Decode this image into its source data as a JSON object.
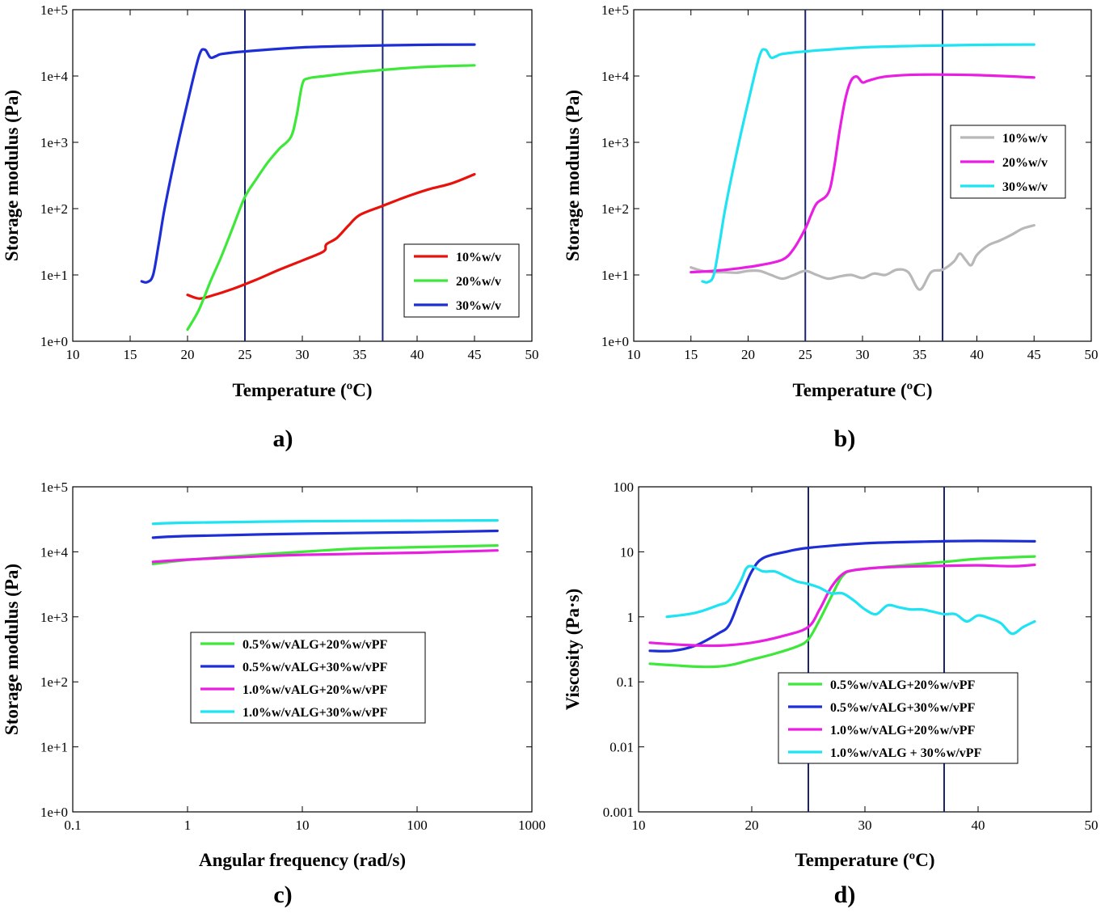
{
  "figure": {
    "panels": [
      {
        "id": "a",
        "panel_label": "a)",
        "xlabel": "Temperature (ºC)",
        "ylabel": "Storage modulus (Pa)"
      },
      {
        "id": "b",
        "panel_label": "b)",
        "xlabel": "Temperature (ºC)",
        "ylabel": "Storage modulus (Pa)"
      },
      {
        "id": "c",
        "panel_label": "c)",
        "xlabel": "Angular frequency (rad/s)",
        "ylabel": "Storage modulus (Pa)"
      },
      {
        "id": "d",
        "panel_label": "d)",
        "xlabel": "Temperature (ºC)",
        "ylabel": "Viscosity (Pa·s)"
      }
    ]
  },
  "chart_data": [
    {
      "panel": "a",
      "type": "line",
      "title": "",
      "xlabel": "Temperature (ºC)",
      "ylabel": "Storage modulus (Pa)",
      "xscale": "linear",
      "yscale": "log",
      "xlim": [
        10,
        50
      ],
      "ylim": [
        1,
        100000
      ],
      "x_ticks": [
        "10",
        "15",
        "20",
        "25",
        "30",
        "35",
        "40",
        "45",
        "50"
      ],
      "y_ticks": [
        "1e+0",
        "1e+1",
        "1e+2",
        "1e+3",
        "1e+4",
        "1e+5"
      ],
      "vertical_lines": [
        25,
        37
      ],
      "reference_line_color": "#1a2370",
      "grid": false,
      "legend_position": "lower-right",
      "series": [
        {
          "name": "10%w/v",
          "color": "#e8120c",
          "points": [
            [
              20,
              5.0
            ],
            [
              21,
              4.4
            ],
            [
              22,
              4.8
            ],
            [
              24,
              6.2
            ],
            [
              26,
              8.5
            ],
            [
              28,
              12
            ],
            [
              30,
              16.5
            ],
            [
              31.5,
              21
            ],
            [
              32,
              24
            ],
            [
              32.1,
              29
            ],
            [
              33,
              36
            ],
            [
              34,
              55
            ],
            [
              35,
              80
            ],
            [
              37,
              110
            ],
            [
              39,
              150
            ],
            [
              41,
              195
            ],
            [
              43,
              240
            ],
            [
              45,
              330
            ]
          ]
        },
        {
          "name": "20%w/v",
          "color": "#3ee83a",
          "points": [
            [
              20,
              1.5
            ],
            [
              21,
              3
            ],
            [
              22,
              8
            ],
            [
              23,
              20
            ],
            [
              24,
              55
            ],
            [
              25,
              150
            ],
            [
              26,
              280
            ],
            [
              27,
              500
            ],
            [
              28,
              800
            ],
            [
              29,
              1200
            ],
            [
              29.5,
              2500
            ],
            [
              30,
              7500
            ],
            [
              30.5,
              9200
            ],
            [
              32,
              10000
            ],
            [
              35,
              11500
            ],
            [
              40,
              13500
            ],
            [
              45,
              14500
            ]
          ]
        },
        {
          "name": "30%w/v",
          "color": "#1d2ed6",
          "points": [
            [
              16,
              8
            ],
            [
              16.5,
              7.8
            ],
            [
              17,
              10
            ],
            [
              17.5,
              30
            ],
            [
              18,
              100
            ],
            [
              19,
              700
            ],
            [
              20,
              4000
            ],
            [
              21,
              20000
            ],
            [
              21.5,
              25000
            ],
            [
              22,
              19000
            ],
            [
              22.5,
              20000
            ],
            [
              23,
              21500
            ],
            [
              25,
              23500
            ],
            [
              30,
              27000
            ],
            [
              35,
              28500
            ],
            [
              40,
              29500
            ],
            [
              45,
              29800
            ]
          ]
        }
      ]
    },
    {
      "panel": "b",
      "type": "line",
      "title": "",
      "xlabel": "Temperature (ºC)",
      "ylabel": "Storage modulus (Pa)",
      "xscale": "linear",
      "yscale": "log",
      "xlim": [
        10,
        50
      ],
      "ylim": [
        1,
        100000
      ],
      "x_ticks": [
        "10",
        "15",
        "20",
        "25",
        "30",
        "35",
        "40",
        "45",
        "50"
      ],
      "y_ticks": [
        "1e+0",
        "1e+1",
        "1e+2",
        "1e+3",
        "1e+4",
        "1e+5"
      ],
      "vertical_lines": [
        25,
        37
      ],
      "reference_line_color": "#1a2370",
      "grid": false,
      "legend_position": "upper-right",
      "series": [
        {
          "name": "10%w/v",
          "color": "#b8b8b8",
          "points": [
            [
              15,
              13
            ],
            [
              16,
              11.5
            ],
            [
              17,
              11
            ],
            [
              18,
              11
            ],
            [
              19,
              10.8
            ],
            [
              20,
              11.5
            ],
            [
              21,
              11.5
            ],
            [
              22,
              10
            ],
            [
              23,
              8.8
            ],
            [
              24,
              10
            ],
            [
              25,
              11.5
            ],
            [
              26,
              10
            ],
            [
              27,
              8.8
            ],
            [
              28,
              9.5
            ],
            [
              29,
              10
            ],
            [
              30,
              9
            ],
            [
              31,
              10.5
            ],
            [
              32,
              10
            ],
            [
              33,
              12
            ],
            [
              34,
              11
            ],
            [
              35,
              6
            ],
            [
              36,
              11
            ],
            [
              37,
              12
            ],
            [
              38,
              16
            ],
            [
              38.5,
              21
            ],
            [
              39,
              17
            ],
            [
              39.5,
              14
            ],
            [
              40,
              20
            ],
            [
              41,
              28
            ],
            [
              42,
              33
            ],
            [
              43,
              40
            ],
            [
              44,
              50
            ],
            [
              45,
              56
            ]
          ]
        },
        {
          "name": "20%w/v",
          "color": "#e91ee2",
          "points": [
            [
              15,
              11
            ],
            [
              17,
              11.5
            ],
            [
              19,
              12.5
            ],
            [
              21,
              14
            ],
            [
              23,
              17
            ],
            [
              24,
              25
            ],
            [
              25,
              50
            ],
            [
              25.5,
              80
            ],
            [
              26,
              120
            ],
            [
              27,
              170
            ],
            [
              27.5,
              400
            ],
            [
              28,
              1500
            ],
            [
              28.5,
              4500
            ],
            [
              29,
              8500
            ],
            [
              29.5,
              9800
            ],
            [
              30,
              8000
            ],
            [
              30.5,
              8500
            ],
            [
              32,
              9800
            ],
            [
              35,
              10500
            ],
            [
              40,
              10300
            ],
            [
              45,
              9500
            ]
          ]
        },
        {
          "name": "30%w/v",
          "color": "#1ee3f2",
          "points": [
            [
              16,
              8
            ],
            [
              16.5,
              7.8
            ],
            [
              17,
              10
            ],
            [
              17.5,
              30
            ],
            [
              18,
              100
            ],
            [
              19,
              700
            ],
            [
              20,
              4000
            ],
            [
              21,
              20000
            ],
            [
              21.5,
              25000
            ],
            [
              22,
              19000
            ],
            [
              22.5,
              20000
            ],
            [
              23,
              21500
            ],
            [
              25,
              23500
            ],
            [
              30,
              27000
            ],
            [
              35,
              28500
            ],
            [
              40,
              29500
            ],
            [
              45,
              29800
            ]
          ]
        }
      ]
    },
    {
      "panel": "c",
      "type": "line",
      "title": "",
      "xlabel": "Angular frequency (rad/s)",
      "ylabel": "Storage modulus (Pa)",
      "xscale": "log",
      "yscale": "log",
      "xlim": [
        0.1,
        1000
      ],
      "ylim": [
        1,
        100000
      ],
      "x_ticks": [
        "0.1",
        "1",
        "10",
        "100",
        "1000"
      ],
      "y_ticks": [
        "1e+0",
        "1e+1",
        "1e+2",
        "1e+3",
        "1e+4",
        "1e+5"
      ],
      "vertical_lines": [],
      "grid": false,
      "legend_position": "center",
      "series": [
        {
          "name": "0.5%w/vALG+20%w/vPF",
          "color": "#3ee83a",
          "points": [
            [
              0.5,
              6500
            ],
            [
              1,
              7500
            ],
            [
              3,
              8700
            ],
            [
              10,
              10000
            ],
            [
              30,
              11200
            ],
            [
              100,
              11800
            ],
            [
              500,
              12500
            ]
          ]
        },
        {
          "name": "0.5%w/vALG+30%w/vPF",
          "color": "#1d2ed6",
          "points": [
            [
              0.5,
              16500
            ],
            [
              1,
              17500
            ],
            [
              10,
              19000
            ],
            [
              100,
              20000
            ],
            [
              500,
              21000
            ]
          ]
        },
        {
          "name": "1.0%w/vALG+20%w/vPF",
          "color": "#e91ee2",
          "points": [
            [
              0.5,
              7000
            ],
            [
              1,
              7600
            ],
            [
              3,
              8300
            ],
            [
              10,
              9000
            ],
            [
              100,
              9700
            ],
            [
              500,
              10500
            ]
          ]
        },
        {
          "name": "1.0%w/vALG+30%w/vPF",
          "color": "#1ee3f2",
          "points": [
            [
              0.5,
              27000
            ],
            [
              1,
              28000
            ],
            [
              10,
              29500
            ],
            [
              100,
              30000
            ],
            [
              500,
              30500
            ]
          ]
        }
      ]
    },
    {
      "panel": "d",
      "type": "line",
      "title": "",
      "xlabel": "Temperature (ºC)",
      "ylabel": "Viscosity (Pa·s)",
      "xscale": "linear",
      "yscale": "log",
      "xlim": [
        10,
        50
      ],
      "ylim": [
        0.001,
        100
      ],
      "x_ticks": [
        "10",
        "20",
        "30",
        "40",
        "50"
      ],
      "y_ticks": [
        "0.001",
        "0.01",
        "0.1",
        "1",
        "10",
        "100"
      ],
      "vertical_lines": [
        25,
        37
      ],
      "reference_line_color": "#1a2370",
      "grid": false,
      "legend_position": "lower-right",
      "series": [
        {
          "name": "0.5%w/vALG+20%w/vPF",
          "color": "#3ee83a",
          "points": [
            [
              11,
              0.19
            ],
            [
              13,
              0.18
            ],
            [
              16,
              0.17
            ],
            [
              18,
              0.18
            ],
            [
              20,
              0.22
            ],
            [
              22,
              0.27
            ],
            [
              24,
              0.35
            ],
            [
              25,
              0.45
            ],
            [
              26,
              0.9
            ],
            [
              27,
              2
            ],
            [
              28,
              4.2
            ],
            [
              29,
              5.2
            ],
            [
              32,
              5.9
            ],
            [
              37,
              7
            ],
            [
              40,
              7.8
            ],
            [
              45,
              8.5
            ]
          ]
        },
        {
          "name": "0.5%w/vALG+30%w/vPF",
          "color": "#1d2ed6",
          "points": [
            [
              11,
              0.3
            ],
            [
              13,
              0.3
            ],
            [
              15,
              0.36
            ],
            [
              17,
              0.55
            ],
            [
              18,
              0.75
            ],
            [
              19,
              2
            ],
            [
              20,
              5
            ],
            [
              21,
              8
            ],
            [
              23,
              10
            ],
            [
              25,
              11.5
            ],
            [
              30,
              13.5
            ],
            [
              35,
              14.3
            ],
            [
              40,
              14.7
            ],
            [
              45,
              14.5
            ]
          ]
        },
        {
          "name": "1.0%w/vALG+20%w/vPF",
          "color": "#e91ee2",
          "points": [
            [
              11,
              0.4
            ],
            [
              14,
              0.37
            ],
            [
              17,
              0.36
            ],
            [
              20,
              0.4
            ],
            [
              23,
              0.52
            ],
            [
              25,
              0.7
            ],
            [
              26,
              1.3
            ],
            [
              27,
              2.8
            ],
            [
              28,
              4.5
            ],
            [
              29,
              5.2
            ],
            [
              32,
              5.8
            ],
            [
              37,
              6.1
            ],
            [
              40,
              6.2
            ],
            [
              43,
              6.0
            ],
            [
              45,
              6.3
            ]
          ]
        },
        {
          "name": "1.0%w/vALG + 30%w/vPF",
          "color": "#1ee3f2",
          "points": [
            [
              12.5,
              1.0
            ],
            [
              15,
              1.15
            ],
            [
              17,
              1.5
            ],
            [
              18,
              1.8
            ],
            [
              19,
              3.5
            ],
            [
              19.5,
              5.5
            ],
            [
              20,
              6
            ],
            [
              21,
              5
            ],
            [
              22,
              5
            ],
            [
              23,
              4.2
            ],
            [
              24,
              3.5
            ],
            [
              25,
              3.2
            ],
            [
              26,
              2.8
            ],
            [
              27,
              2.3
            ],
            [
              28,
              2.3
            ],
            [
              29,
              1.8
            ],
            [
              30,
              1.3
            ],
            [
              31,
              1.1
            ],
            [
              32,
              1.5
            ],
            [
              33,
              1.4
            ],
            [
              34,
              1.3
            ],
            [
              35,
              1.3
            ],
            [
              36,
              1.2
            ],
            [
              37,
              1.1
            ],
            [
              38,
              1.1
            ],
            [
              39,
              0.85
            ],
            [
              40,
              1.05
            ],
            [
              41,
              0.95
            ],
            [
              42,
              0.8
            ],
            [
              43,
              0.55
            ],
            [
              44,
              0.7
            ],
            [
              45,
              0.85
            ]
          ]
        }
      ]
    }
  ]
}
